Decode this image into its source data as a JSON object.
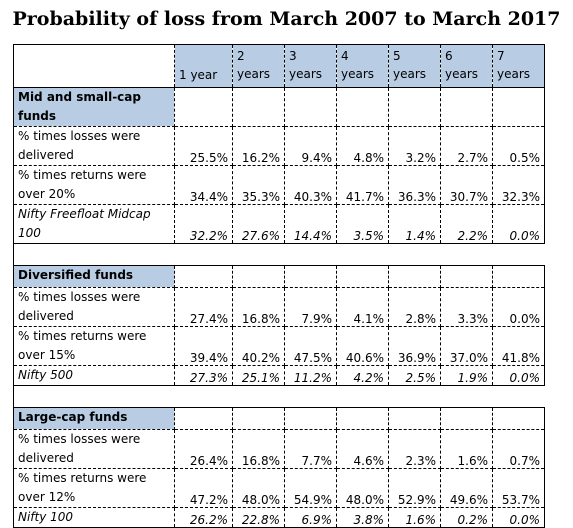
{
  "title": "Probability of loss from March 2007 to March 2017",
  "columns": [
    "1 year",
    "2 years",
    "3 years",
    "4 years",
    "5 years",
    "6 years",
    "7 years"
  ],
  "column_parts": [
    [
      "",
      "1 year"
    ],
    [
      "2",
      "years"
    ],
    [
      "3",
      "years"
    ],
    [
      "4",
      "years"
    ],
    [
      "5",
      "years"
    ],
    [
      "6",
      "years"
    ],
    [
      "7",
      "years"
    ]
  ],
  "sections": [
    {
      "name": "Mid and small-cap funds",
      "rows": [
        {
          "label": "% times losses were delivered",
          "values": [
            "25.5%",
            "16.2%",
            "9.4%",
            "4.8%",
            "3.2%",
            "2.7%",
            "0.5%"
          ]
        },
        {
          "label": "% times returns were over 20%",
          "values": [
            "34.4%",
            "35.3%",
            "40.3%",
            "41.7%",
            "36.3%",
            "30.7%",
            "32.3%"
          ]
        },
        {
          "label": "Nifty Freefloat Midcap 100",
          "values": [
            "32.2%",
            "27.6%",
            "14.4%",
            "3.5%",
            "1.4%",
            "2.2%",
            "0.0%"
          ]
        }
      ]
    },
    {
      "name": "Diversified funds",
      "rows": [
        {
          "label": "% times losses were delivered",
          "values": [
            "27.4%",
            "16.8%",
            "7.9%",
            "4.1%",
            "2.8%",
            "3.3%",
            "0.0%"
          ]
        },
        {
          "label": "% times returns were over 15%",
          "values": [
            "39.4%",
            "40.2%",
            "47.5%",
            "40.6%",
            "36.9%",
            "37.0%",
            "41.8%"
          ]
        },
        {
          "label": "Nifty 500",
          "values": [
            "27.3%",
            "25.1%",
            "11.2%",
            "4.2%",
            "2.5%",
            "1.9%",
            "0.0%"
          ]
        }
      ]
    },
    {
      "name": "Large-cap funds",
      "rows": [
        {
          "label": "% times losses were delivered",
          "values": [
            "26.4%",
            "16.8%",
            "7.7%",
            "4.6%",
            "2.3%",
            "1.6%",
            "0.7%"
          ]
        },
        {
          "label": "% times returns were over 12%",
          "values": [
            "47.2%",
            "48.0%",
            "54.9%",
            "48.0%",
            "52.9%",
            "49.6%",
            "53.7%"
          ]
        },
        {
          "label": "Nifty 100",
          "values": [
            "26.2%",
            "22.8%",
            "6.9%",
            "3.8%",
            "1.6%",
            "0.2%",
            "0.0%"
          ]
        }
      ]
    }
  ]
}
